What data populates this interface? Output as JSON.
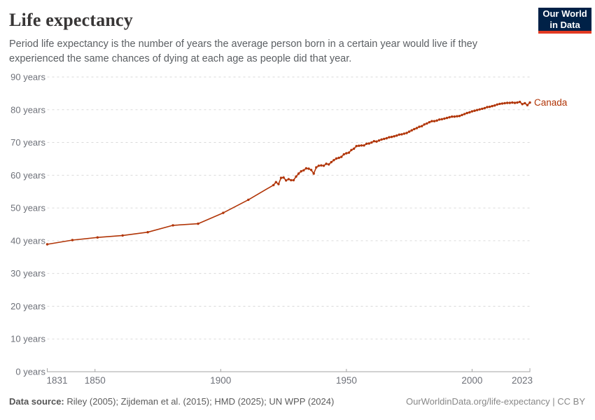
{
  "header": {
    "title": "Life expectancy",
    "subtitle": "Period life expectancy is the number of years the average person born in a certain year would live if they experienced the same chances of dying at each age as people did that year.",
    "logo": {
      "line1": "Our World",
      "line2": "in Data"
    }
  },
  "footer": {
    "sources_label": "Data source:",
    "sources_text": " Riley (2005); Zijdeman et al. (2015); HMD (2025); UN WPP (2024)",
    "link": "OurWorldinData.org/life-expectancy",
    "separator": " | ",
    "license": "CC BY"
  },
  "colors": {
    "accent": "#B13507",
    "title_text": "#383636",
    "subtitle_text": "#5b5f63",
    "axis_text": "#6e7179",
    "gridline": "#dadada",
    "axis_line": "#a3a3a3",
    "logo_bg": "#002147",
    "logo_underline": "#e23a22"
  },
  "chart_data": {
    "type": "line",
    "title": "Life expectancy",
    "entity_label": "Canada",
    "unit_suffix": " years",
    "x_range": [
      1831,
      2023
    ],
    "y_range": [
      0,
      90
    ],
    "y_tick_interval": 10,
    "x_ticks": [
      1831,
      1850,
      1900,
      1950,
      2000,
      2023
    ],
    "grid": true,
    "legend_position": "end-of-line",
    "line_color": "#B13507",
    "series": [
      {
        "name": "Canada",
        "points": [
          [
            1831,
            38.9
          ],
          [
            1841,
            40.2
          ],
          [
            1851,
            41.0
          ],
          [
            1861,
            41.6
          ],
          [
            1871,
            42.6
          ],
          [
            1881,
            44.7
          ],
          [
            1891,
            45.2
          ],
          [
            1901,
            48.5
          ],
          [
            1911,
            52.5
          ],
          [
            1921,
            57.0
          ],
          [
            1922,
            57.9
          ],
          [
            1923,
            57.3
          ],
          [
            1924,
            59.2
          ],
          [
            1925,
            59.3
          ],
          [
            1926,
            58.4
          ],
          [
            1927,
            58.8
          ],
          [
            1928,
            58.5
          ],
          [
            1929,
            58.5
          ],
          [
            1930,
            59.6
          ],
          [
            1931,
            60.5
          ],
          [
            1932,
            61.2
          ],
          [
            1933,
            61.5
          ],
          [
            1934,
            62.1
          ],
          [
            1935,
            62.0
          ],
          [
            1936,
            61.6
          ],
          [
            1937,
            60.5
          ],
          [
            1938,
            62.4
          ],
          [
            1939,
            62.9
          ],
          [
            1940,
            63.0
          ],
          [
            1941,
            62.9
          ],
          [
            1942,
            63.5
          ],
          [
            1943,
            63.3
          ],
          [
            1944,
            64.0
          ],
          [
            1945,
            64.6
          ],
          [
            1946,
            65.1
          ],
          [
            1947,
            65.3
          ],
          [
            1948,
            65.6
          ],
          [
            1949,
            66.4
          ],
          [
            1950,
            66.7
          ],
          [
            1951,
            66.9
          ],
          [
            1952,
            67.7
          ],
          [
            1953,
            68.1
          ],
          [
            1954,
            68.9
          ],
          [
            1955,
            69.0
          ],
          [
            1956,
            69.1
          ],
          [
            1957,
            69.1
          ],
          [
            1958,
            69.6
          ],
          [
            1959,
            69.7
          ],
          [
            1960,
            70.0
          ],
          [
            1961,
            70.4
          ],
          [
            1962,
            70.3
          ],
          [
            1963,
            70.6
          ],
          [
            1964,
            70.9
          ],
          [
            1965,
            71.1
          ],
          [
            1966,
            71.3
          ],
          [
            1967,
            71.6
          ],
          [
            1968,
            71.7
          ],
          [
            1969,
            71.9
          ],
          [
            1970,
            72.1
          ],
          [
            1971,
            72.4
          ],
          [
            1972,
            72.5
          ],
          [
            1973,
            72.7
          ],
          [
            1974,
            72.9
          ],
          [
            1975,
            73.3
          ],
          [
            1976,
            73.7
          ],
          [
            1977,
            74.1
          ],
          [
            1978,
            74.4
          ],
          [
            1979,
            74.8
          ],
          [
            1980,
            75.0
          ],
          [
            1981,
            75.5
          ],
          [
            1982,
            75.8
          ],
          [
            1983,
            76.2
          ],
          [
            1984,
            76.5
          ],
          [
            1985,
            76.5
          ],
          [
            1986,
            76.7
          ],
          [
            1987,
            77.0
          ],
          [
            1988,
            77.1
          ],
          [
            1989,
            77.3
          ],
          [
            1990,
            77.5
          ],
          [
            1991,
            77.7
          ],
          [
            1992,
            77.9
          ],
          [
            1993,
            77.9
          ],
          [
            1994,
            78.0
          ],
          [
            1995,
            78.1
          ],
          [
            1996,
            78.4
          ],
          [
            1997,
            78.7
          ],
          [
            1998,
            79.0
          ],
          [
            1999,
            79.2
          ],
          [
            2000,
            79.5
          ],
          [
            2001,
            79.7
          ],
          [
            2002,
            79.9
          ],
          [
            2003,
            80.1
          ],
          [
            2004,
            80.3
          ],
          [
            2005,
            80.5
          ],
          [
            2006,
            80.8
          ],
          [
            2007,
            80.9
          ],
          [
            2008,
            81.1
          ],
          [
            2009,
            81.3
          ],
          [
            2010,
            81.6
          ],
          [
            2011,
            81.8
          ],
          [
            2012,
            81.9
          ],
          [
            2013,
            82.0
          ],
          [
            2014,
            82.1
          ],
          [
            2015,
            82.1
          ],
          [
            2016,
            82.2
          ],
          [
            2017,
            82.1
          ],
          [
            2018,
            82.2
          ],
          [
            2019,
            82.4
          ],
          [
            2020,
            81.7
          ],
          [
            2021,
            82.0
          ],
          [
            2022,
            81.4
          ],
          [
            2023,
            82.2
          ]
        ]
      }
    ]
  }
}
